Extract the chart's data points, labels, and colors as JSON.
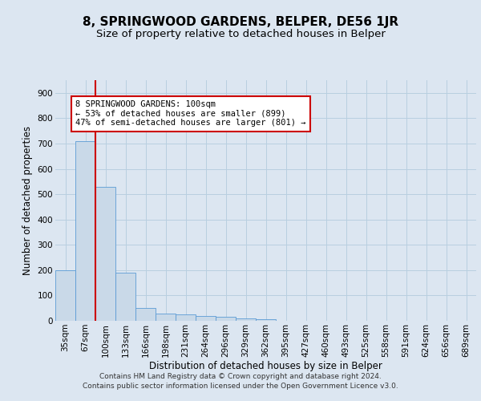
{
  "title": "8, SPRINGWOOD GARDENS, BELPER, DE56 1JR",
  "subtitle": "Size of property relative to detached houses in Belper",
  "xlabel": "Distribution of detached houses by size in Belper",
  "ylabel": "Number of detached properties",
  "categories": [
    "35sqm",
    "67sqm",
    "100sqm",
    "133sqm",
    "166sqm",
    "198sqm",
    "231sqm",
    "264sqm",
    "296sqm",
    "329sqm",
    "362sqm",
    "395sqm",
    "427sqm",
    "460sqm",
    "493sqm",
    "525sqm",
    "558sqm",
    "591sqm",
    "624sqm",
    "656sqm",
    "689sqm"
  ],
  "values": [
    200,
    710,
    530,
    190,
    50,
    30,
    25,
    20,
    15,
    10,
    5,
    0,
    0,
    0,
    0,
    0,
    0,
    0,
    0,
    0,
    0
  ],
  "bar_color": "#c9d9e8",
  "bar_edge_color": "#5b9bd5",
  "red_line_index": 1,
  "red_line_color": "#cc0000",
  "annotation_text": "8 SPRINGWOOD GARDENS: 100sqm\n← 53% of detached houses are smaller (899)\n47% of semi-detached houses are larger (801) →",
  "annotation_box_color": "#ffffff",
  "annotation_box_edge": "#cc0000",
  "ylim": [
    0,
    950
  ],
  "yticks": [
    0,
    100,
    200,
    300,
    400,
    500,
    600,
    700,
    800,
    900
  ],
  "footer_line1": "Contains HM Land Registry data © Crown copyright and database right 2024.",
  "footer_line2": "Contains public sector information licensed under the Open Government Licence v3.0.",
  "background_color": "#dce6f1",
  "plot_bg_color": "#dce6f1",
  "grid_color": "#b8cfe0",
  "title_fontsize": 11,
  "subtitle_fontsize": 9.5,
  "axis_label_fontsize": 8.5,
  "tick_fontsize": 7.5,
  "footer_fontsize": 6.5,
  "annotation_fontsize": 7.5
}
